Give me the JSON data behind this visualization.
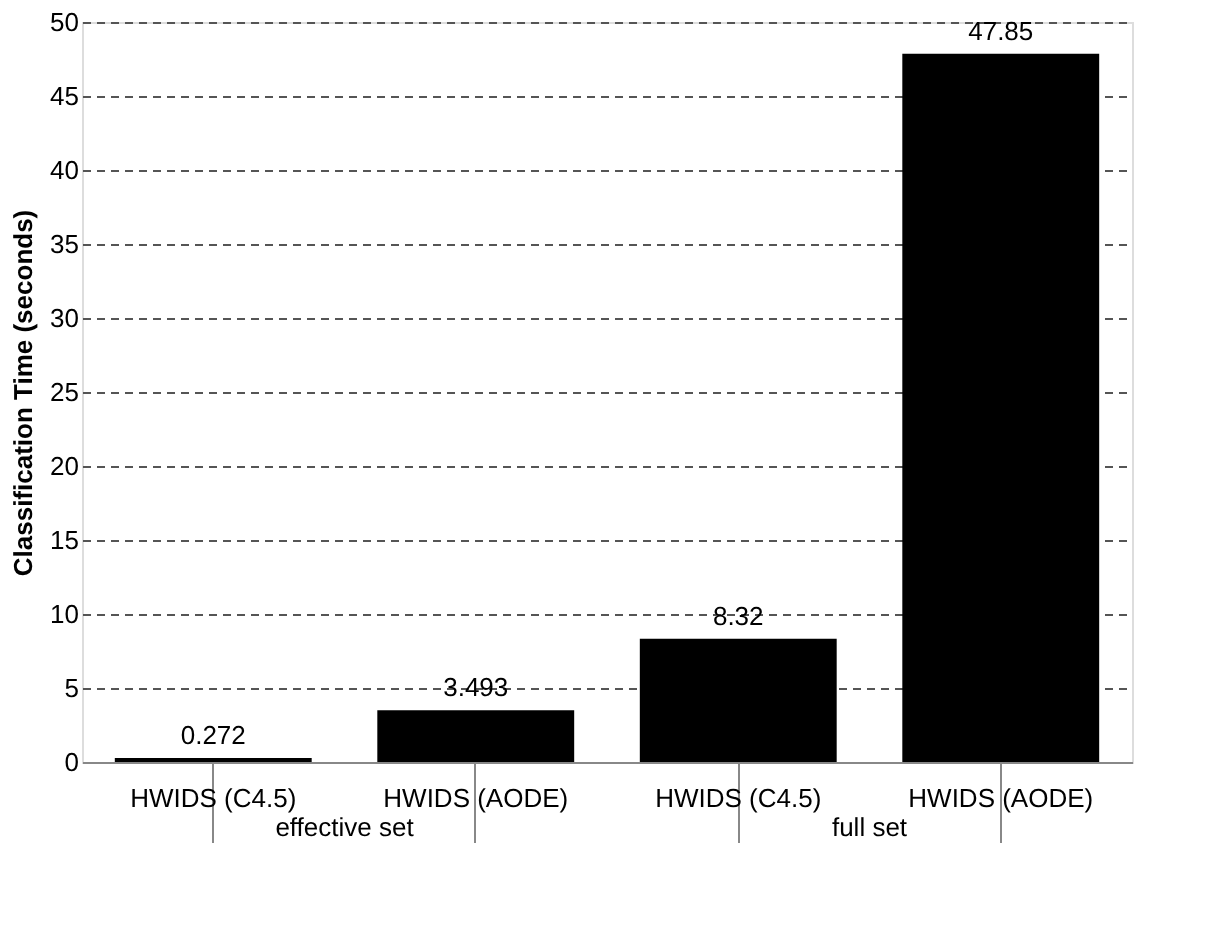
{
  "chart_data": {
    "type": "bar",
    "categories": [
      "HWIDS (C4.5)",
      "HWIDS (AODE)",
      "HWIDS (C4.5)",
      "HWIDS (AODE)"
    ],
    "values": [
      0.272,
      3.493,
      8.32,
      47.85
    ],
    "colors": [
      "#000000",
      "#000000",
      "#000000",
      "#000000"
    ],
    "ylabel": "Classification Time (seconds)",
    "ylim": [
      0,
      50
    ],
    "yticks": [
      0,
      5,
      10,
      15,
      20,
      25,
      30,
      35,
      40,
      45,
      50
    ],
    "grid": "y",
    "data_labels": true,
    "annotations": [
      "effective set",
      "full set"
    ]
  }
}
